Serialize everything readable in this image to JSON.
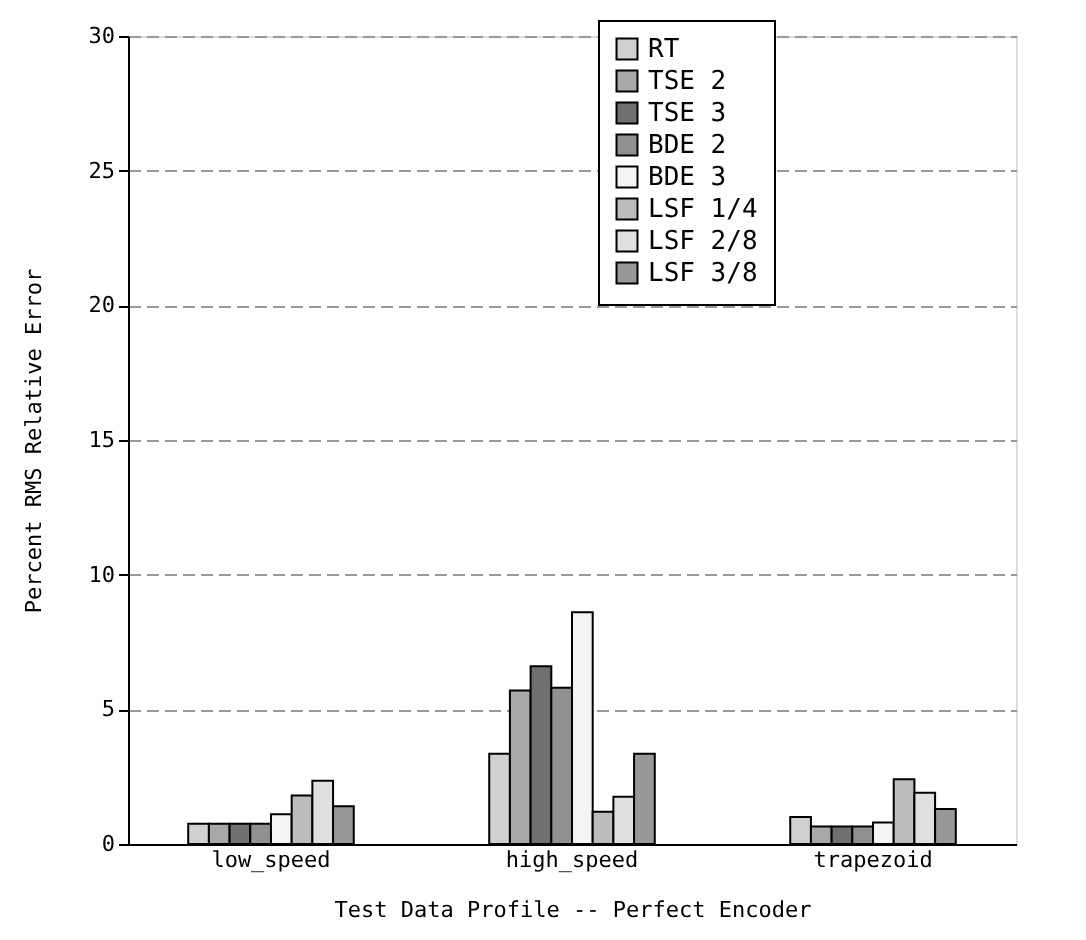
{
  "chart_data": {
    "type": "bar",
    "xlabel": "Test Data Profile -- Perfect Encoder",
    "ylabel": "Percent RMS Relative Error",
    "categories": [
      "low_speed",
      "high_speed",
      "trapezoid"
    ],
    "series": [
      {
        "name": "RT",
        "color": "#d0d0d0",
        "values": [
          0.75,
          3.35,
          1.0
        ]
      },
      {
        "name": "TSE 2",
        "color": "#a8a8a8",
        "values": [
          0.75,
          5.7,
          0.65
        ]
      },
      {
        "name": "TSE 3",
        "color": "#707070",
        "values": [
          0.75,
          6.6,
          0.65
        ]
      },
      {
        "name": "BDE 2",
        "color": "#909090",
        "values": [
          0.75,
          5.8,
          0.65
        ]
      },
      {
        "name": "BDE 3",
        "color": "#f4f4f4",
        "values": [
          1.1,
          8.6,
          0.8
        ]
      },
      {
        "name": "LSF 1/4",
        "color": "#bcbcbc",
        "values": [
          1.8,
          1.2,
          2.4
        ]
      },
      {
        "name": "LSF 2/8",
        "color": "#e0e0e0",
        "values": [
          2.35,
          1.75,
          1.9
        ]
      },
      {
        "name": "LSF 3/8",
        "color": "#989898",
        "values": [
          1.4,
          3.35,
          1.3
        ]
      }
    ],
    "ylim": [
      0,
      30
    ],
    "yticks": [
      0,
      5,
      10,
      15,
      20,
      25,
      30
    ],
    "grid": "y",
    "legend": "top right"
  }
}
